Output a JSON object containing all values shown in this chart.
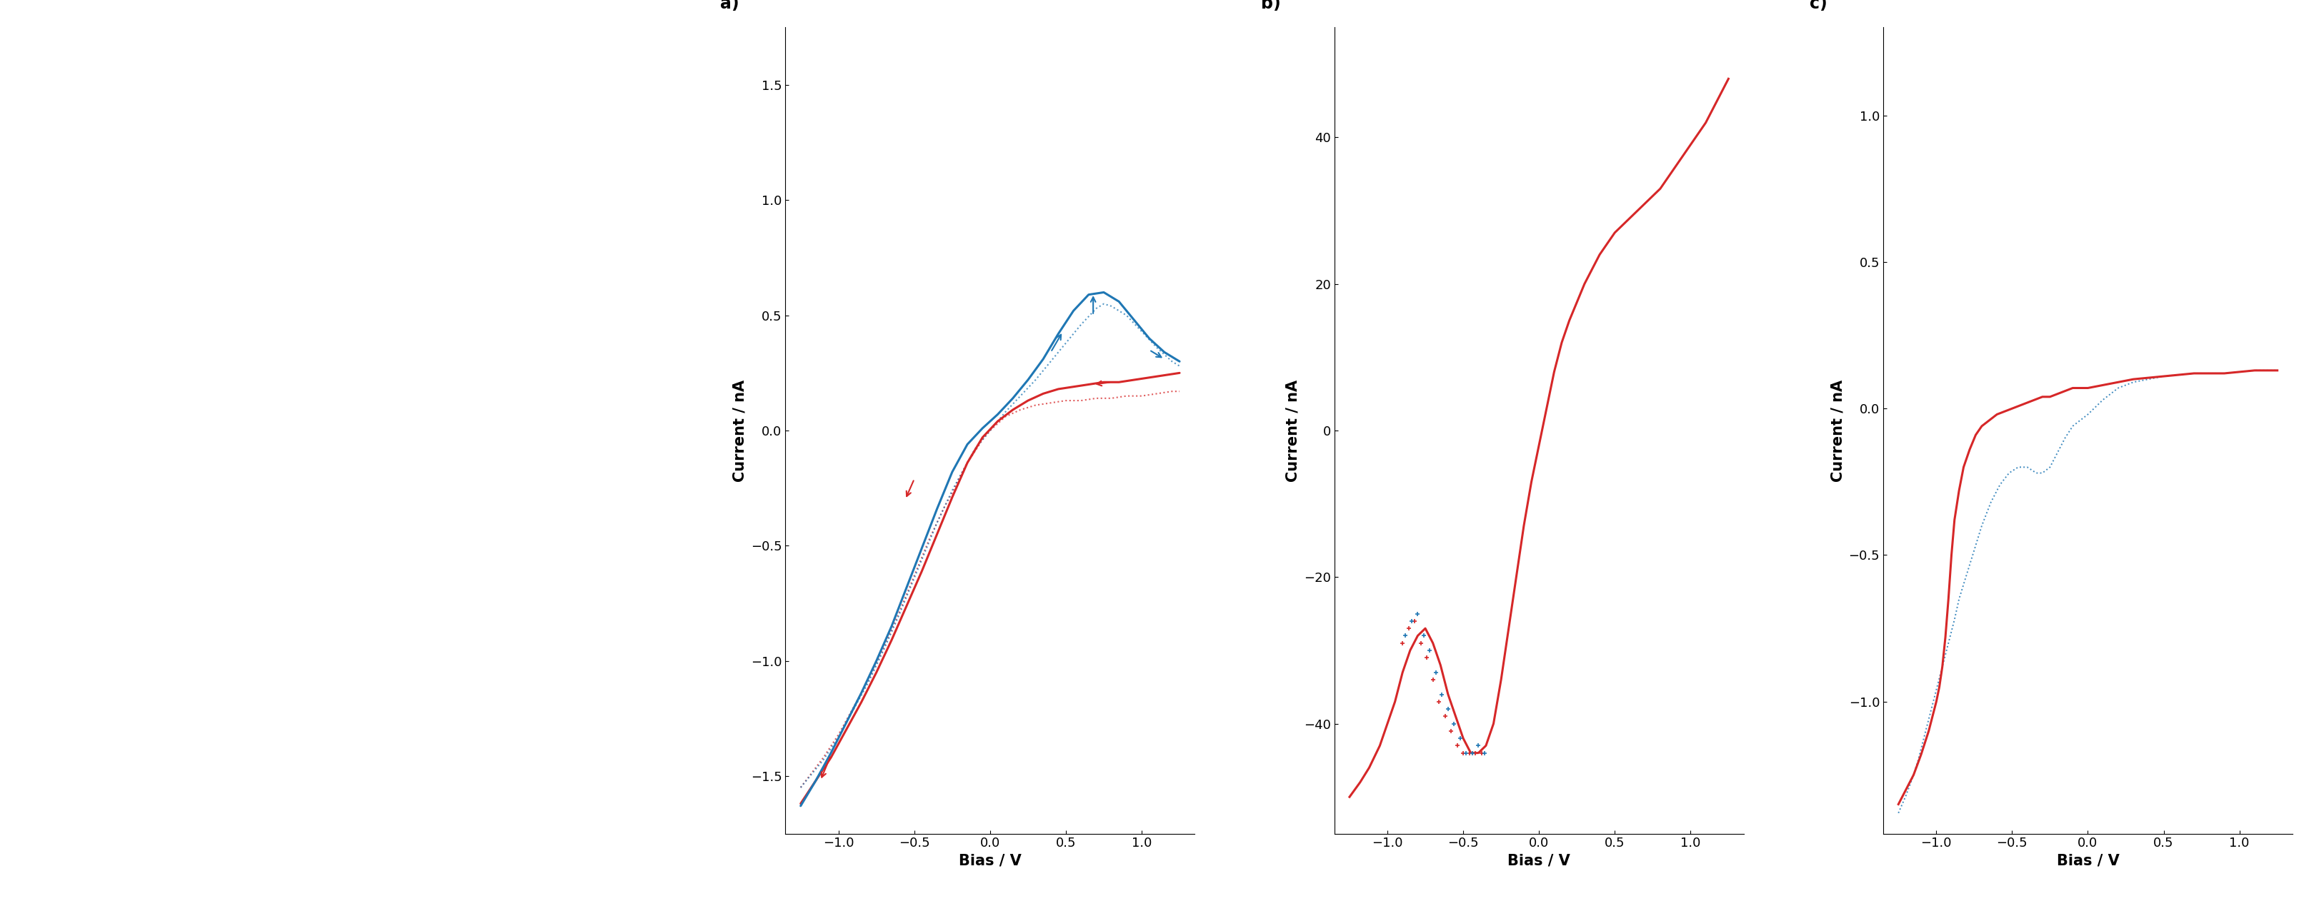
{
  "fig_width": 32.25,
  "fig_height": 12.83,
  "background_color": "#ffffff",
  "subplots": {
    "a": {
      "label": "a)",
      "xlabel": "Bias / V",
      "ylabel": "Current / nA",
      "xlim": [
        -1.35,
        1.35
      ],
      "ylim": [
        -1.75,
        1.75
      ],
      "xticks": [
        -1,
        -0.5,
        0,
        0.5,
        1
      ],
      "yticks": [
        -1.5,
        -1,
        -0.5,
        0,
        0.5,
        1,
        1.5
      ],
      "red_solid_x": [
        -1.25,
        -1.15,
        -1.05,
        -0.95,
        -0.85,
        -0.75,
        -0.65,
        -0.55,
        -0.45,
        -0.35,
        -0.25,
        -0.15,
        -0.05,
        0.05,
        0.15,
        0.25,
        0.35,
        0.45,
        0.55,
        0.65,
        0.75,
        0.85,
        0.95,
        1.05,
        1.15,
        1.25
      ],
      "red_solid_y": [
        -1.62,
        -1.52,
        -1.42,
        -1.3,
        -1.18,
        -1.05,
        -0.91,
        -0.76,
        -0.61,
        -0.45,
        -0.29,
        -0.14,
        -0.03,
        0.04,
        0.09,
        0.13,
        0.16,
        0.18,
        0.19,
        0.2,
        0.21,
        0.21,
        0.22,
        0.23,
        0.24,
        0.25
      ],
      "blue_solid_x": [
        -1.25,
        -1.15,
        -1.05,
        -0.95,
        -0.85,
        -0.75,
        -0.65,
        -0.55,
        -0.45,
        -0.35,
        -0.25,
        -0.15,
        -0.05,
        0.05,
        0.15,
        0.25,
        0.35,
        0.45,
        0.55,
        0.65,
        0.75,
        0.85,
        0.95,
        1.05,
        1.15,
        1.25
      ],
      "blue_solid_y": [
        -1.63,
        -1.52,
        -1.4,
        -1.27,
        -1.14,
        -1.0,
        -0.85,
        -0.68,
        -0.51,
        -0.34,
        -0.18,
        -0.06,
        0.01,
        0.07,
        0.14,
        0.22,
        0.31,
        0.42,
        0.52,
        0.59,
        0.6,
        0.56,
        0.48,
        0.4,
        0.34,
        0.3
      ],
      "red_dashed_x": [
        -1.25,
        -1.1,
        -1.0,
        -0.9,
        -0.8,
        -0.7,
        -0.6,
        -0.5,
        -0.45,
        -0.4,
        -0.35,
        -0.3,
        -0.25,
        -0.2,
        -0.15,
        -0.1,
        -0.05,
        0.0,
        0.05,
        0.1,
        0.2,
        0.3,
        0.4,
        0.5,
        0.6,
        0.7,
        0.8,
        0.9,
        1.0,
        1.1,
        1.2,
        1.25
      ],
      "red_dashed_y": [
        -1.55,
        -1.42,
        -1.32,
        -1.2,
        -1.08,
        -0.94,
        -0.79,
        -0.63,
        -0.55,
        -0.47,
        -0.4,
        -0.33,
        -0.27,
        -0.2,
        -0.14,
        -0.09,
        -0.04,
        0.0,
        0.03,
        0.06,
        0.09,
        0.11,
        0.12,
        0.13,
        0.13,
        0.14,
        0.14,
        0.15,
        0.15,
        0.16,
        0.17,
        0.17
      ],
      "blue_dashed_x": [
        -1.25,
        -1.1,
        -1.0,
        -0.9,
        -0.8,
        -0.7,
        -0.6,
        -0.5,
        -0.45,
        -0.4,
        -0.35,
        -0.3,
        -0.25,
        -0.2,
        -0.15,
        -0.1,
        -0.05,
        0.0,
        0.05,
        0.1,
        0.2,
        0.3,
        0.4,
        0.5,
        0.6,
        0.7,
        0.75,
        0.8,
        0.85,
        0.9,
        1.0,
        1.1,
        1.2,
        1.25
      ],
      "blue_dashed_y": [
        -1.55,
        -1.43,
        -1.33,
        -1.21,
        -1.09,
        -0.95,
        -0.8,
        -0.64,
        -0.56,
        -0.48,
        -0.4,
        -0.33,
        -0.26,
        -0.2,
        -0.14,
        -0.08,
        -0.04,
        0.0,
        0.04,
        0.08,
        0.15,
        0.22,
        0.3,
        0.38,
        0.46,
        0.53,
        0.55,
        0.54,
        0.52,
        0.5,
        0.43,
        0.36,
        0.3,
        0.28
      ]
    },
    "b": {
      "label": "b)",
      "xlabel": "Bias / V",
      "ylabel": "Current / nA",
      "xlim": [
        -1.35,
        1.35
      ],
      "ylim": [
        -55,
        55
      ],
      "xticks": [
        -1,
        -0.5,
        0,
        0.5,
        1
      ],
      "yticks": [
        -40,
        -20,
        0,
        20,
        40
      ],
      "red_solid_x": [
        -1.25,
        -1.18,
        -1.12,
        -1.05,
        -1.0,
        -0.95,
        -0.9,
        -0.85,
        -0.8,
        -0.75,
        -0.7,
        -0.65,
        -0.6,
        -0.55,
        -0.5,
        -0.45,
        -0.4,
        -0.35,
        -0.3,
        -0.25,
        -0.2,
        -0.15,
        -0.1,
        -0.05,
        0.0,
        0.05,
        0.1,
        0.15,
        0.2,
        0.3,
        0.4,
        0.5,
        0.6,
        0.7,
        0.8,
        0.9,
        1.0,
        1.1,
        1.2,
        1.25
      ],
      "red_solid_y": [
        -50,
        -48,
        -46,
        -43,
        -40,
        -37,
        -33,
        -30,
        -28,
        -27,
        -29,
        -32,
        -36,
        -39,
        -42,
        -44,
        -44,
        -43,
        -40,
        -34,
        -27,
        -20,
        -13,
        -7,
        -2,
        3,
        8,
        12,
        15,
        20,
        24,
        27,
        29,
        31,
        33,
        36,
        39,
        42,
        46,
        48
      ],
      "blue_scatter_x": [
        -0.88,
        -0.84,
        -0.8,
        -0.76,
        -0.72,
        -0.68,
        -0.64,
        -0.6,
        -0.56,
        -0.52,
        -0.48,
        -0.44,
        -0.4,
        -0.36
      ],
      "blue_scatter_y": [
        -28,
        -26,
        -25,
        -28,
        -30,
        -33,
        -36,
        -38,
        -40,
        -42,
        -44,
        -44,
        -43,
        -44
      ],
      "red_scatter_x": [
        -0.9,
        -0.86,
        -0.82,
        -0.78,
        -0.74,
        -0.7,
        -0.66,
        -0.62,
        -0.58,
        -0.54,
        -0.5,
        -0.46,
        -0.42,
        -0.38
      ],
      "red_scatter_y": [
        -29,
        -27,
        -26,
        -29,
        -31,
        -34,
        -37,
        -39,
        -41,
        -43,
        -44,
        -44,
        -44,
        -44
      ]
    },
    "c": {
      "label": "c)",
      "xlabel": "Bias / V",
      "ylabel": "Current / nA",
      "xlim": [
        -1.35,
        1.35
      ],
      "ylim": [
        -1.45,
        1.3
      ],
      "xticks": [
        -1,
        -0.5,
        0,
        0.5,
        1
      ],
      "yticks": [
        -1,
        -0.5,
        0,
        0.5,
        1
      ],
      "red_solid_x": [
        -1.25,
        -1.2,
        -1.15,
        -1.1,
        -1.05,
        -1.0,
        -0.98,
        -0.96,
        -0.94,
        -0.92,
        -0.9,
        -0.88,
        -0.85,
        -0.82,
        -0.78,
        -0.74,
        -0.7,
        -0.65,
        -0.6,
        -0.55,
        -0.5,
        -0.45,
        -0.4,
        -0.35,
        -0.3,
        -0.25,
        -0.2,
        -0.15,
        -0.1,
        0.0,
        0.1,
        0.2,
        0.3,
        0.5,
        0.7,
        0.9,
        1.1,
        1.25
      ],
      "red_solid_y": [
        -1.35,
        -1.3,
        -1.25,
        -1.18,
        -1.1,
        -1.0,
        -0.95,
        -0.88,
        -0.78,
        -0.65,
        -0.5,
        -0.38,
        -0.28,
        -0.2,
        -0.14,
        -0.09,
        -0.06,
        -0.04,
        -0.02,
        -0.01,
        0.0,
        0.01,
        0.02,
        0.03,
        0.04,
        0.04,
        0.05,
        0.06,
        0.07,
        0.07,
        0.08,
        0.09,
        0.1,
        0.11,
        0.12,
        0.12,
        0.13,
        0.13
      ],
      "blue_dashed_x": [
        -1.25,
        -1.2,
        -1.15,
        -1.12,
        -1.09,
        -1.06,
        -1.03,
        -1.0,
        -0.97,
        -0.94,
        -0.91,
        -0.88,
        -0.85,
        -0.82,
        -0.79,
        -0.76,
        -0.73,
        -0.7,
        -0.67,
        -0.64,
        -0.61,
        -0.58,
        -0.55,
        -0.52,
        -0.49,
        -0.46,
        -0.43,
        -0.4,
        -0.37,
        -0.34,
        -0.3,
        -0.25,
        -0.2,
        -0.15,
        -0.1,
        0.0,
        0.1,
        0.2,
        0.3,
        0.5,
        0.7,
        0.9,
        1.1,
        1.25
      ],
      "blue_dashed_y": [
        -1.38,
        -1.32,
        -1.25,
        -1.2,
        -1.14,
        -1.08,
        -1.02,
        -0.96,
        -0.9,
        -0.84,
        -0.78,
        -0.72,
        -0.65,
        -0.6,
        -0.55,
        -0.5,
        -0.45,
        -0.4,
        -0.36,
        -0.32,
        -0.29,
        -0.26,
        -0.24,
        -0.22,
        -0.21,
        -0.2,
        -0.2,
        -0.2,
        -0.21,
        -0.22,
        -0.22,
        -0.2,
        -0.15,
        -0.1,
        -0.06,
        -0.02,
        0.03,
        0.07,
        0.09,
        0.11,
        0.12,
        0.12,
        0.13,
        0.13
      ]
    }
  },
  "colors": {
    "red": "#d62728",
    "blue": "#1f77b4"
  }
}
